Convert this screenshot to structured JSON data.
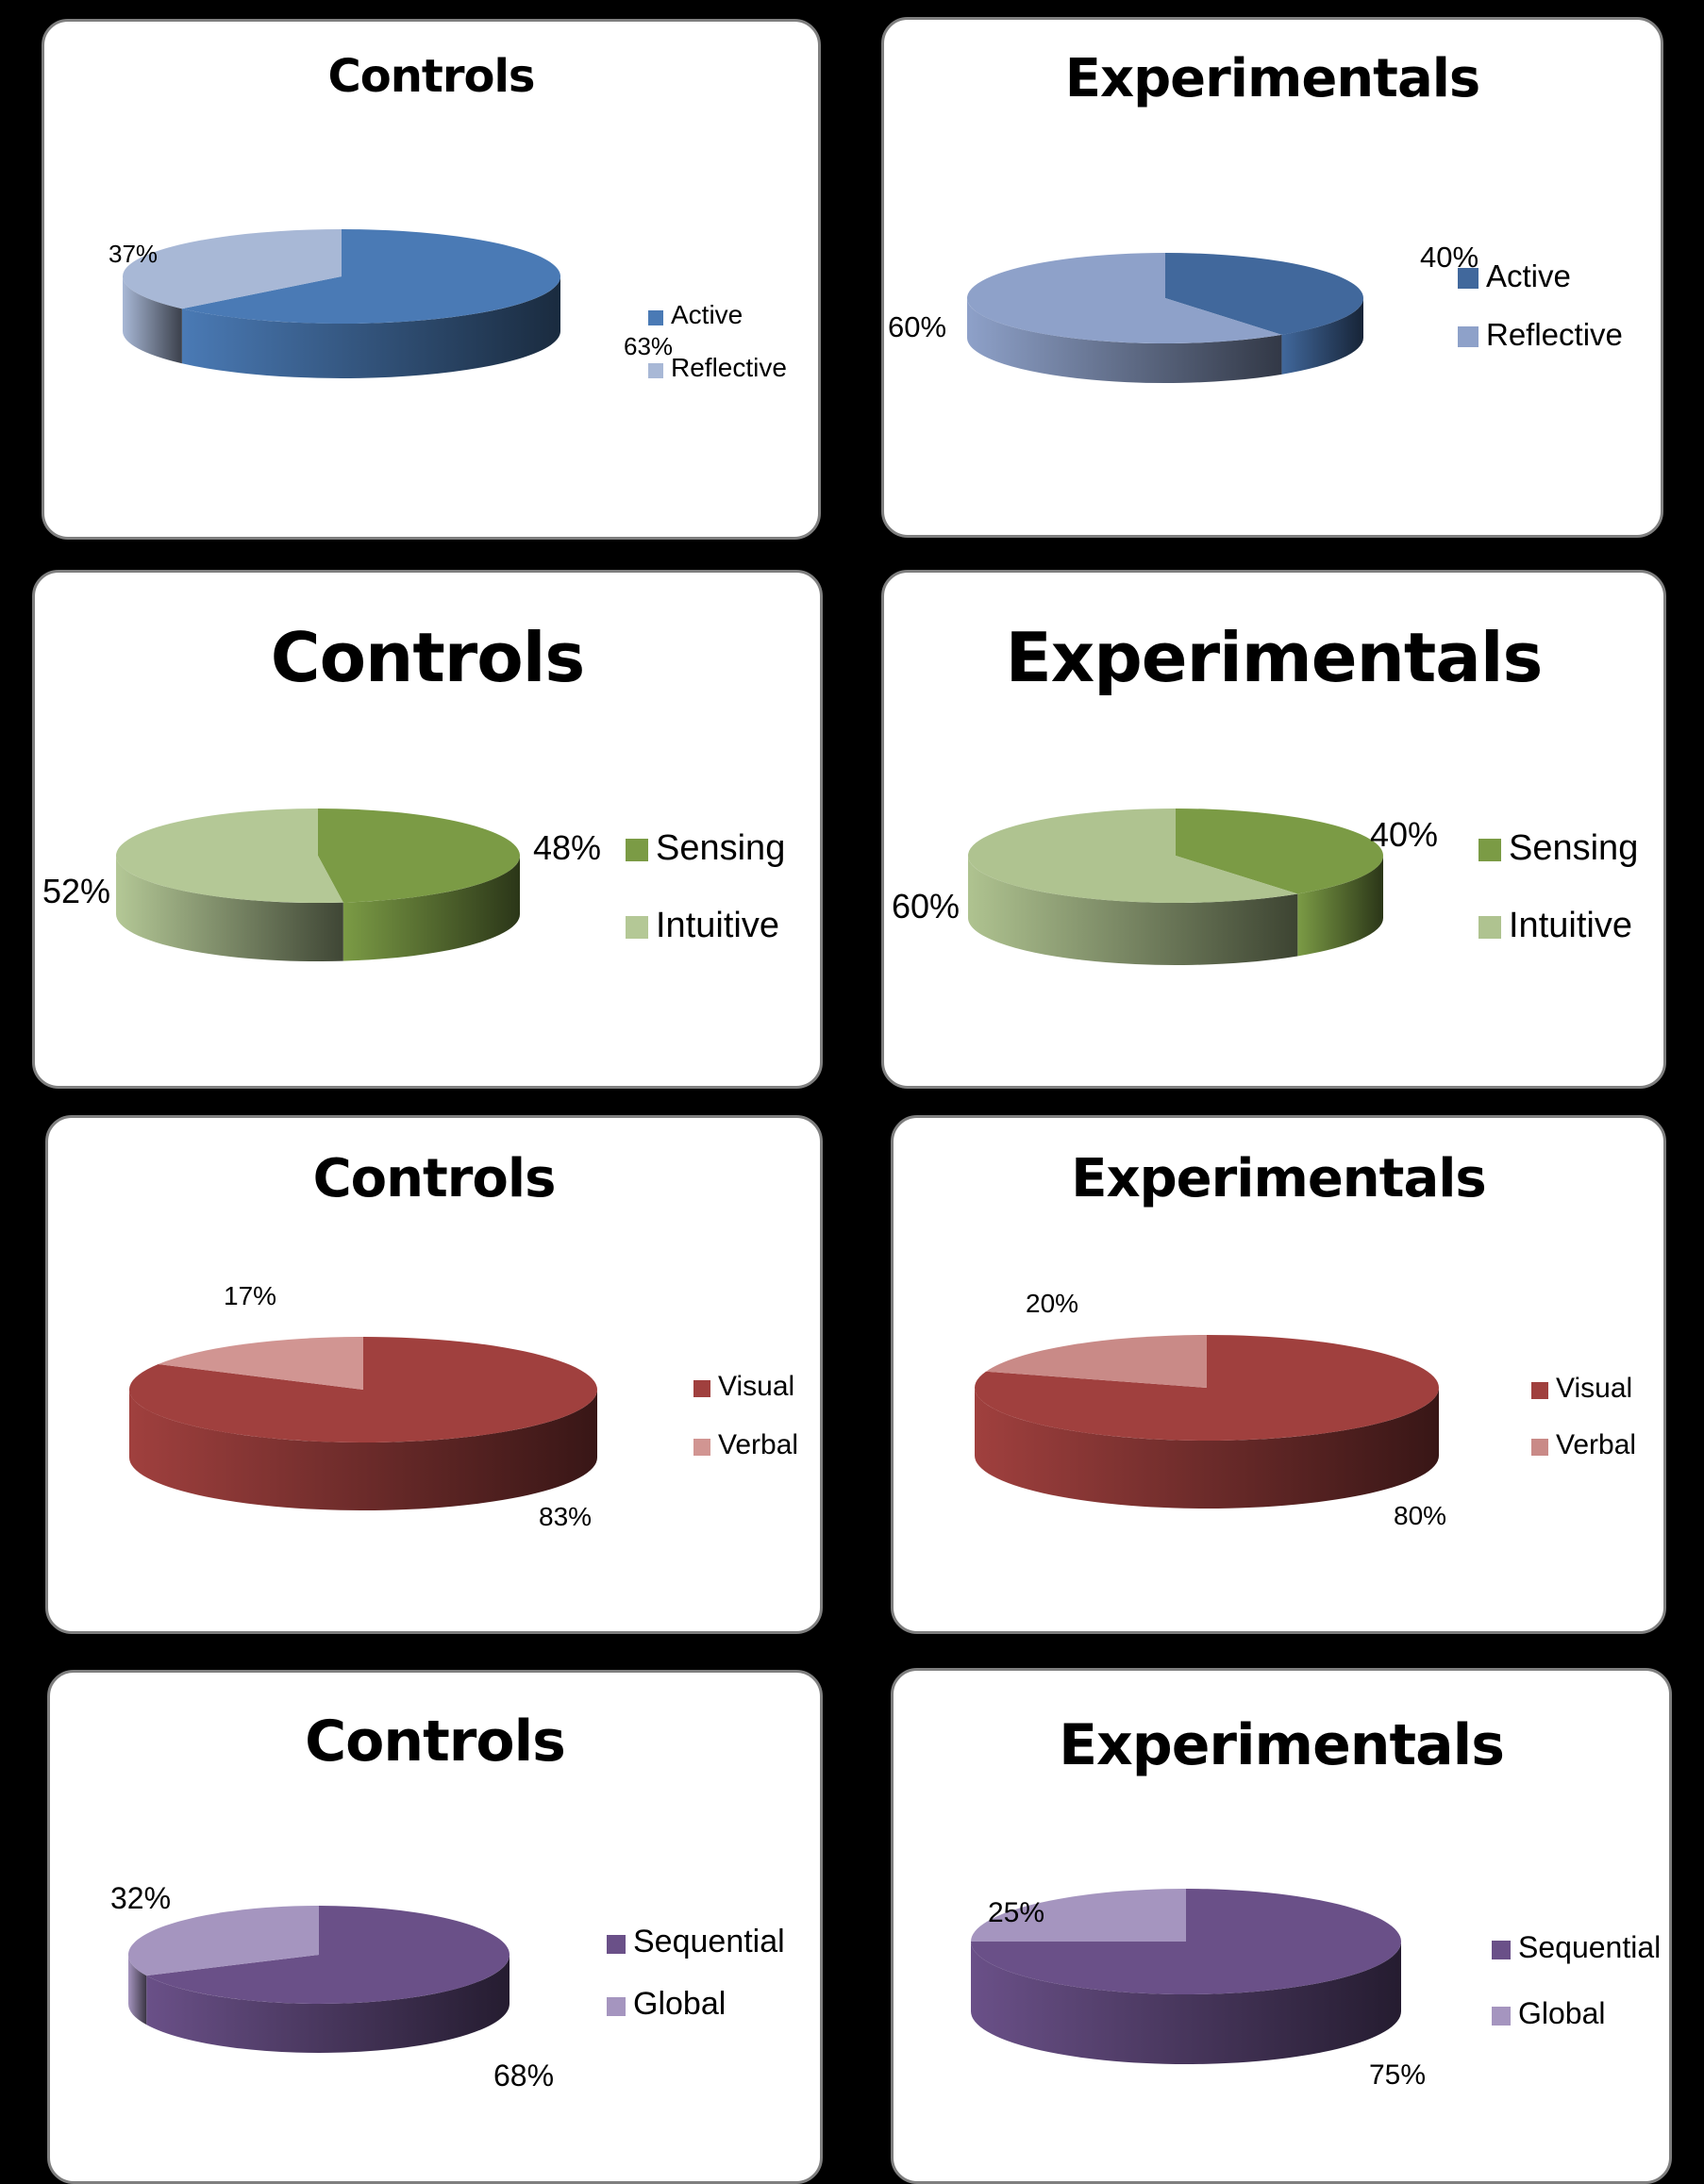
{
  "chart_data": [
    {
      "type": "pie",
      "title": "Controls",
      "categories": [
        "Active",
        "Reflective"
      ],
      "values": [
        63,
        37
      ],
      "labels": [
        "63%",
        "37%"
      ],
      "legend": "right",
      "colors": [
        "#4a7ab5",
        "#a8b8d6"
      ]
    },
    {
      "type": "pie",
      "title": "Experimentals",
      "categories": [
        "Active",
        "Reflective"
      ],
      "values": [
        40,
        60
      ],
      "labels": [
        "40%",
        "60%"
      ],
      "legend": "right",
      "colors": [
        "#41689c",
        "#8ea1c9"
      ]
    },
    {
      "type": "pie",
      "title": "Controls",
      "categories": [
        "Sensing",
        "Intuitive"
      ],
      "values": [
        48,
        52
      ],
      "labels": [
        "48%",
        "52%"
      ],
      "legend": "right",
      "colors": [
        "#7b9b45",
        "#b4c896"
      ]
    },
    {
      "type": "pie",
      "title": "Experimentals",
      "categories": [
        "Sensing",
        "Intuitive"
      ],
      "values": [
        40,
        60
      ],
      "labels": [
        "40%",
        "60%"
      ],
      "legend": "right",
      "colors": [
        "#7b9b45",
        "#afc390"
      ]
    },
    {
      "type": "pie",
      "title": "Controls",
      "categories": [
        "Visual",
        "Verbal"
      ],
      "values": [
        83,
        17
      ],
      "labels": [
        "83%",
        "17%"
      ],
      "legend": "right",
      "colors": [
        "#a0403e",
        "#d19592"
      ]
    },
    {
      "type": "pie",
      "title": "Experimentals",
      "categories": [
        "Visual",
        "Verbal"
      ],
      "values": [
        80,
        20
      ],
      "labels": [
        "80%",
        "20%"
      ],
      "legend": "right",
      "colors": [
        "#a0403e",
        "#c98a87"
      ]
    },
    {
      "type": "pie",
      "title": "Controls",
      "categories": [
        "Sequential",
        "Global"
      ],
      "values": [
        68,
        32
      ],
      "labels": [
        "68%",
        "32%"
      ],
      "legend": "right",
      "colors": [
        "#6a5088",
        "#a595bf"
      ]
    },
    {
      "type": "pie",
      "title": "Experimentals",
      "categories": [
        "Sequential",
        "Global"
      ],
      "values": [
        75,
        25
      ],
      "labels": [
        "75%",
        "25%"
      ],
      "legend": "right",
      "colors": [
        "#6a5088",
        "#a595bf"
      ]
    }
  ]
}
